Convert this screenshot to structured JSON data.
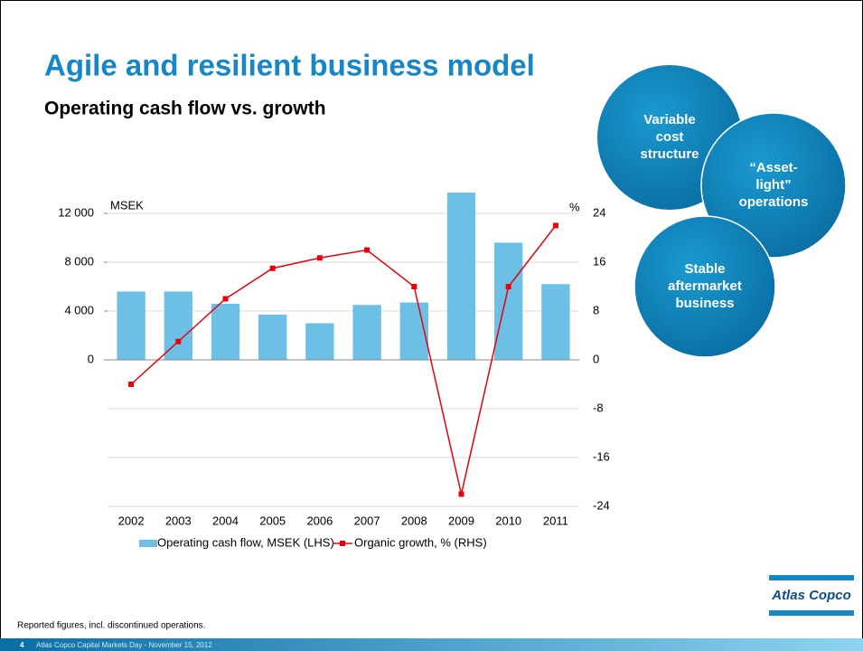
{
  "header": {
    "title": "Agile and resilient business model",
    "subtitle": "Operating cash flow vs. growth"
  },
  "bubbles": [
    [
      "Variable",
      "cost",
      "structure"
    ],
    [
      "“Asset-",
      "light”",
      "operations"
    ],
    [
      "Stable",
      "aftermarket",
      "business"
    ]
  ],
  "footnote": "Reported figures, incl. discontinued operations.",
  "footer": {
    "page": "4",
    "text": "Atlas Copco Capital Markets Day - November 15, 2012"
  },
  "logo": "Atlas Copco",
  "chart_data": {
    "type": "bar",
    "categories": [
      "2002",
      "2003",
      "2004",
      "2005",
      "2006",
      "2007",
      "2008",
      "2009",
      "2010",
      "2011"
    ],
    "y_unit": "MSEK",
    "y2_unit": "%",
    "series": [
      {
        "name": "Operating cash flow, MSEK (LHS)",
        "type": "bar",
        "color": "#6cc0e5",
        "values": [
          5600,
          5600,
          4600,
          3700,
          3000,
          4500,
          4700,
          13700,
          9600,
          6200
        ]
      },
      {
        "name": "Organic growth, % (RHS)",
        "type": "line",
        "axis": "y2",
        "color": "#e8000b",
        "values": [
          -4,
          3,
          10,
          15,
          16.7,
          18,
          12,
          -22,
          12,
          22
        ]
      }
    ],
    "ylim": [
      -12000,
      14000
    ],
    "yticks": [
      {
        "value": 0,
        "label": "0"
      },
      {
        "value": 4000,
        "label": "4 000"
      },
      {
        "value": 8000,
        "label": "8 000"
      },
      {
        "value": 12000,
        "label": "12 000"
      }
    ],
    "y2lim": [
      -24,
      28
    ],
    "y2ticks": [
      -24,
      -16,
      -8,
      0,
      8,
      16,
      24
    ],
    "grid": true
  }
}
